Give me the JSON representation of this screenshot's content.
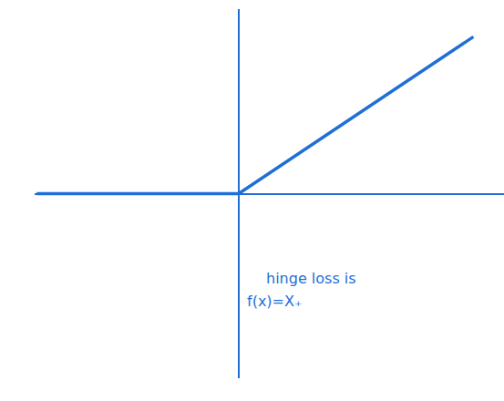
{
  "chart_data": {
    "type": "line",
    "x": [
      -0.99,
      0,
      1.15
    ],
    "values": [
      0,
      0,
      0.85
    ],
    "color": "#1f6fd6",
    "xlim": [
      -1,
      1.3
    ],
    "ylim": [
      -1,
      1
    ],
    "tick_labels": false,
    "grid": false,
    "annotations": [
      "hinge loss is",
      "f(x)=X₊"
    ]
  }
}
